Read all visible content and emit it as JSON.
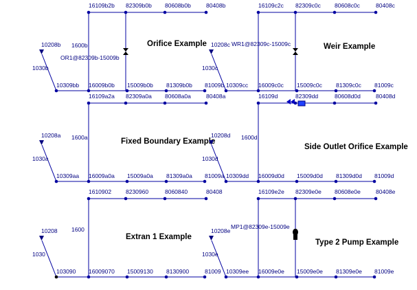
{
  "panels": [
    {
      "title": "Orifice Example",
      "top": [
        "16109b2b",
        "82309b0b",
        "80608b0b",
        "80408b"
      ],
      "bottom": [
        "10309bb",
        "16009b0b",
        "15009b0b",
        "81309b0b",
        "81009b"
      ],
      "link": "1600b",
      "inflow": "10208b",
      "inflow_link": "1030b",
      "device": "OR1@82309b-15009b"
    },
    {
      "title": "Weir Example",
      "top": [
        "16109c2c",
        "82309c0c",
        "80608c0c",
        "80408c"
      ],
      "bottom": [
        "10309cc",
        "16009c0c",
        "15009c0c",
        "81309c0c",
        "81009c"
      ],
      "inflow": "10208c",
      "inflow_link": "1030c",
      "device": "WR1@82309c-15009c"
    },
    {
      "title": "Fixed Boundary Example",
      "top": [
        "16109a2a",
        "82309a0a",
        "80608a0a",
        "80408a"
      ],
      "bottom": [
        "10309aa",
        "16009a0a",
        "15009a0a",
        "81309a0a",
        "81009a"
      ],
      "link": "1600a",
      "inflow": "10208a",
      "inflow_link": "1030a"
    },
    {
      "title": "Side Outlet Orifice Example",
      "top": [
        "16109d",
        "82309dd",
        "80608d0d",
        "80408d"
      ],
      "bottom": [
        "10309dd",
        "16009d0d",
        "15009d0d",
        "81309d0d",
        "81009d"
      ],
      "link": "1600d",
      "inflow": "10208d",
      "inflow_link": "1030d"
    },
    {
      "title": "Extran 1 Example",
      "top": [
        "1610902",
        "8230960",
        "8060840",
        "80408"
      ],
      "bottom": [
        "103090",
        "16009070",
        "15009130",
        "8130900",
        "81009"
      ],
      "link": "1600",
      "inflow": "10208",
      "inflow_link": "1030"
    },
    {
      "title": "Type 2 Pump Example",
      "top": [
        "16109e2e",
        "82309e0e",
        "80608e0e",
        "80408e"
      ],
      "bottom": [
        "10309ee",
        "16009e0e",
        "15009e0e",
        "81309e0e",
        "81009e"
      ],
      "inflow": "10208e",
      "inflow_link": "1030e",
      "device": "MP1@82309e-15009e"
    }
  ]
}
